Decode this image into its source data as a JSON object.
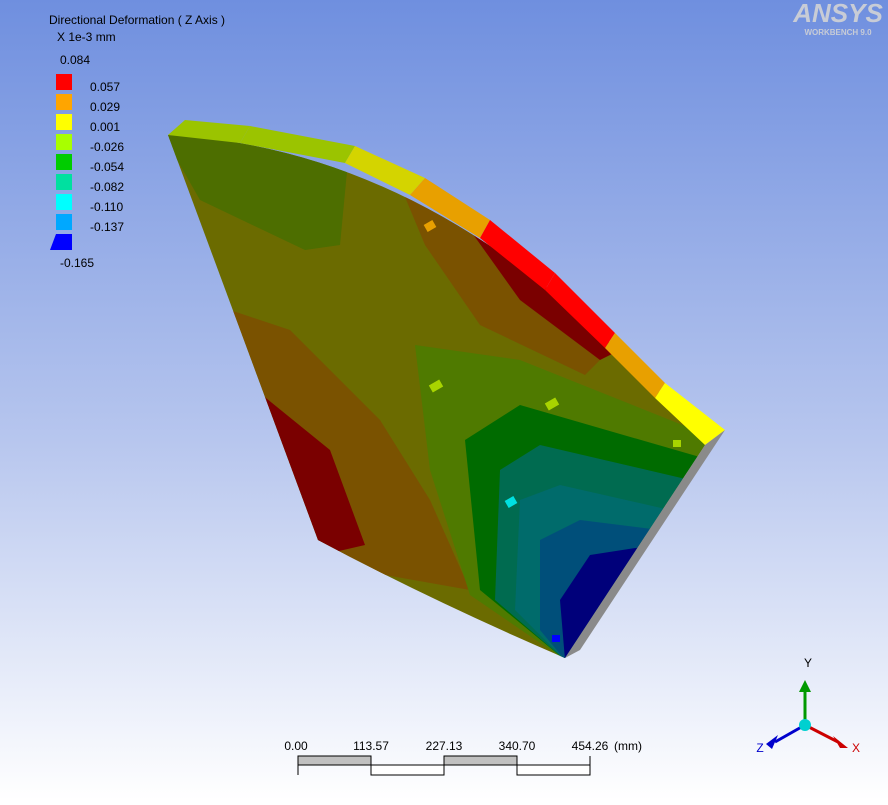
{
  "legend": {
    "title": "Directional Deformation ( Z Axis )",
    "unit": "X 1e-3 mm",
    "max": "0.084",
    "bands": [
      {
        "color": "#ff0000",
        "label": "0.057"
      },
      {
        "color": "#ffa500",
        "label": "0.029"
      },
      {
        "color": "#ffff00",
        "label": "0.001"
      },
      {
        "color": "#a8ff00",
        "label": "-0.026"
      },
      {
        "color": "#00cc00",
        "label": "-0.054"
      },
      {
        "color": "#00e0a0",
        "label": "-0.082"
      },
      {
        "color": "#00ffff",
        "label": "-0.110"
      },
      {
        "color": "#00a8ff",
        "label": "-0.137"
      },
      {
        "color": "#0000ff",
        "label": "-0.165"
      }
    ]
  },
  "logo": {
    "name": "ANSYS",
    "version": "WORKBENCH 9.0"
  },
  "scale_bar": {
    "labels": [
      "0.00",
      "113.57",
      "227.13",
      "340.70",
      "454.26"
    ],
    "unit": "(mm)"
  },
  "triad": {
    "x": "X",
    "y": "Y",
    "z": "Z"
  }
}
